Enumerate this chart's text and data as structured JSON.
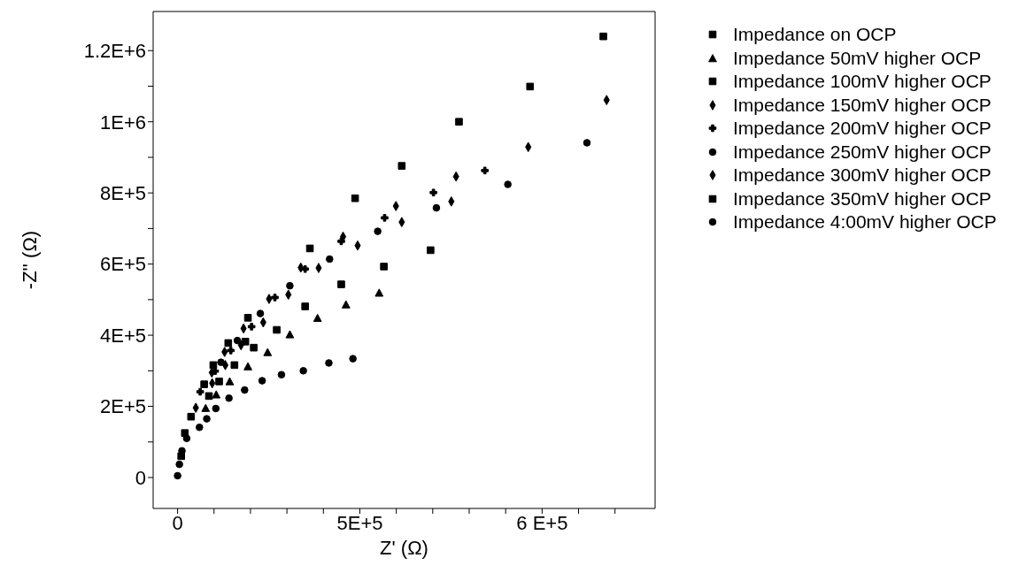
{
  "chart_data": {
    "type": "scatter",
    "xlabel": "Z' (Ω)",
    "ylabel": "-Z'' (Ω)",
    "legend": "right",
    "grid": false,
    "xlim": [
      -67000,
      1310000
    ],
    "ylim": [
      -87000,
      1310000
    ],
    "xticks": [
      0,
      {
        "value": 100000,
        "label": null
      },
      {
        "value": 200000,
        "label": null
      },
      {
        "value": 300000,
        "label": null
      },
      {
        "value": 400000,
        "label": null
      },
      {
        "value": 500000,
        "label": "5E+5"
      },
      {
        "value": 600000,
        "label": null
      },
      {
        "value": 700000,
        "label": null
      },
      {
        "value": 800000,
        "label": null
      },
      {
        "value": 900000,
        "label": null
      },
      {
        "value": 1000000,
        "label": "6 E+5"
      },
      {
        "value": 1100000,
        "label": null
      },
      {
        "value": 1200000,
        "label": null
      }
    ],
    "yticks": [
      0,
      {
        "value": 100000,
        "label": null
      },
      {
        "value": 200000,
        "label": "2E+5"
      },
      {
        "value": 300000,
        "label": null
      },
      {
        "value": 400000,
        "label": "4E+5"
      },
      {
        "value": 500000,
        "label": null
      },
      {
        "value": 600000,
        "label": "6E+5"
      },
      {
        "value": 700000,
        "label": null
      },
      {
        "value": 800000,
        "label": "8E+5"
      },
      {
        "value": 900000,
        "label": null
      },
      {
        "value": 1000000,
        "label": "1E+6"
      },
      {
        "value": 1100000,
        "label": null
      },
      {
        "value": 1200000,
        "label": "1.2E+6"
      }
    ],
    "series": [
      {
        "name": "Impedance on OCP",
        "color": "#000000",
        "marker": "square",
        "x": [
          10000,
          20000
        ],
        "values": [
          60000,
          125000
        ]
      },
      {
        "name": "Impedance 50mV higher OCP",
        "color": "#000000",
        "marker": "triangle",
        "x": [
          77000,
          106000,
          143000,
          193000,
          247000,
          308000,
          384000,
          462000,
          553000
        ],
        "values": [
          195000,
          233000,
          270000,
          312000,
          352000,
          402000,
          448000,
          486000,
          519000
        ]
      },
      {
        "name": "Impedance 100mV higher OCP",
        "color": "#000000",
        "marker": "square",
        "x": [
          86000,
          114000,
          156000,
          209000,
          272000,
          350000,
          449000,
          566000,
          694000
        ],
        "values": [
          229000,
          270000,
          316000,
          365000,
          415000,
          481000,
          543000,
          593000,
          639000
        ]
      },
      {
        "name": "Impedance 150mV higher OCP",
        "color": "#000000",
        "marker": "diamond",
        "x": [
          95000,
          131000,
          174000,
          235000,
          304000,
          387000,
          494000,
          615000,
          751000
        ],
        "values": [
          265000,
          316000,
          372000,
          436000,
          514000,
          589000,
          652000,
          718000,
          776000
        ]
      },
      {
        "name": "Impedance 200mV higher OCP",
        "color": "#000000",
        "marker": "cross",
        "x": [
          62000,
          103000,
          146000,
          203000,
          267000,
          350000,
          449000,
          568000,
          702000,
          843000
        ],
        "values": [
          241000,
          299000,
          357000,
          424000,
          506000,
          586000,
          664000,
          730000,
          801000,
          863000
        ]
      },
      {
        "name": "Impedance 250mV higher OCP",
        "color": "#000000",
        "marker": "circle",
        "x": [
          119000,
          164000,
          227000,
          308000,
          417000,
          549000,
          710000,
          906000,
          1123000
        ],
        "values": [
          324000,
          385000,
          461000,
          539000,
          614000,
          692000,
          758000,
          824000,
          941000
        ]
      },
      {
        "name": "Impedance 300mV higher OCP",
        "color": "#000000",
        "marker": "diamond",
        "x": [
          50000,
          94000,
          129000,
          181000,
          251000,
          338000,
          454000,
          599000,
          764000,
          962000,
          1177000
        ],
        "values": [
          196000,
          295000,
          353000,
          419000,
          502000,
          590000,
          677000,
          763000,
          846000,
          929000,
          1061000
        ]
      },
      {
        "name": "Impedance 350mV higher OCP",
        "color": "#000000",
        "marker": "square",
        "x": [
          37000,
          73000,
          98000,
          139000,
          186000,
          193000,
          363000,
          487000,
          615000,
          772000,
          967000,
          1168000
        ],
        "values": [
          171000,
          262000,
          316000,
          378000,
          382000,
          449000,
          644000,
          785000,
          876000,
          1000000,
          1099000,
          1240000
        ]
      },
      {
        "name": "Impedance 4:00mV higher OCP",
        "color": "#000000",
        "marker": "circle",
        "x": [
          0,
          5000,
          12000,
          25000,
          60000,
          80000,
          105000,
          141000,
          184000,
          232000,
          285000,
          345000,
          415000,
          481000
        ],
        "values": [
          5000,
          37000,
          75000,
          110000,
          141000,
          165000,
          194000,
          223000,
          246000,
          272000,
          289000,
          300000,
          322000,
          334000
        ]
      }
    ]
  }
}
